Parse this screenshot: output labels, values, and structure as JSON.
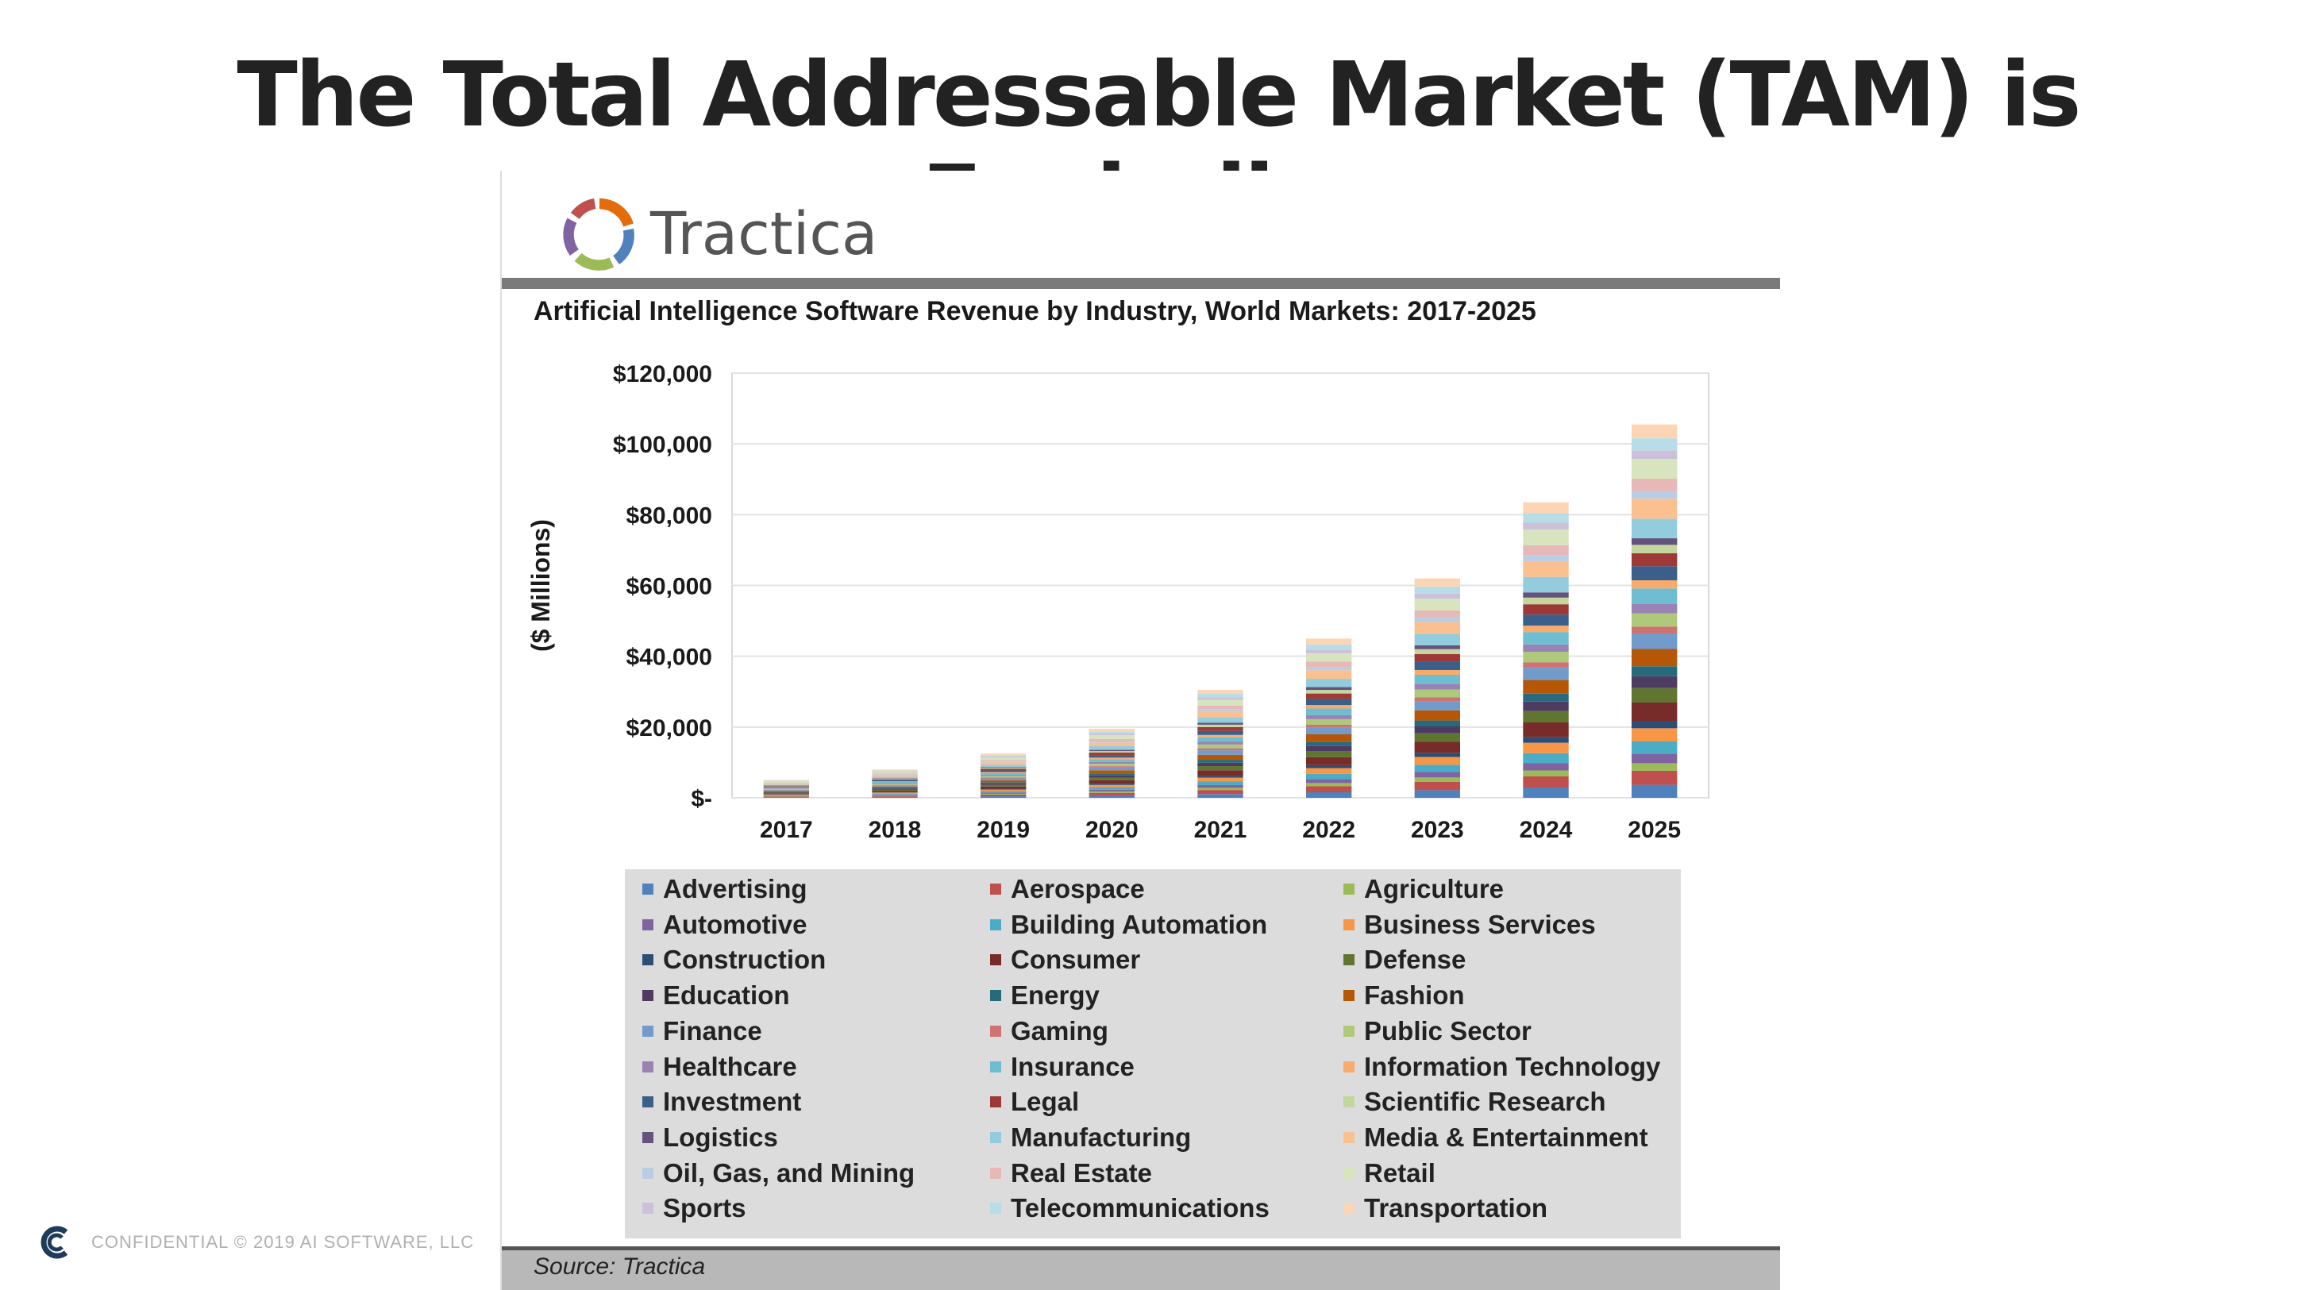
{
  "slide": {
    "title": "The Total Addressable Market (TAM) is Exploding",
    "footer": "CONFIDENTIAL © 2019 AI SOFTWARE, LLC"
  },
  "brand": {
    "name": "Tractica"
  },
  "source": "Source: Tractica",
  "chart_data": {
    "type": "bar",
    "stacked": true,
    "title": "Artificial Intelligence Software Revenue by Industry, World Markets: 2017-2025",
    "xlabel": "",
    "ylabel": "($ Millions)",
    "ylim": [
      0,
      120000
    ],
    "yticks": [
      0,
      20000,
      40000,
      60000,
      80000,
      100000,
      120000
    ],
    "ytick_labels": [
      "$-",
      "$20,000",
      "$40,000",
      "$60,000",
      "$80,000",
      "$100,000",
      "$120,000"
    ],
    "categories": [
      "2017",
      "2018",
      "2019",
      "2020",
      "2021",
      "2022",
      "2023",
      "2024",
      "2025"
    ],
    "totals": [
      5000,
      8000,
      12500,
      19500,
      30500,
      45000,
      62000,
      83500,
      105500
    ],
    "grid": true,
    "legend_position": "bottom",
    "series": [
      {
        "name": "Advertising",
        "color": "#4f81bd"
      },
      {
        "name": "Aerospace",
        "color": "#c0504d"
      },
      {
        "name": "Agriculture",
        "color": "#9bbb59"
      },
      {
        "name": "Automotive",
        "color": "#8064a2"
      },
      {
        "name": "Building Automation",
        "color": "#4bacc6"
      },
      {
        "name": "Business Services",
        "color": "#f79646"
      },
      {
        "name": "Construction",
        "color": "#2c4d75"
      },
      {
        "name": "Consumer",
        "color": "#772c2a"
      },
      {
        "name": "Defense",
        "color": "#5f7530"
      },
      {
        "name": "Education",
        "color": "#4d3b62"
      },
      {
        "name": "Energy",
        "color": "#276a7c"
      },
      {
        "name": "Fashion",
        "color": "#b65708"
      },
      {
        "name": "Finance",
        "color": "#729aca"
      },
      {
        "name": "Gaming",
        "color": "#cd7371"
      },
      {
        "name": "Public Sector",
        "color": "#afc97a"
      },
      {
        "name": "Healthcare",
        "color": "#9983b5"
      },
      {
        "name": "Insurance",
        "color": "#6fbdd1"
      },
      {
        "name": "Information Technology",
        "color": "#f9ab6b"
      },
      {
        "name": "Investment",
        "color": "#3a5f8b"
      },
      {
        "name": "Legal",
        "color": "#9d3a37"
      },
      {
        "name": "Scientific Research",
        "color": "#c3d69b"
      },
      {
        "name": "Logistics",
        "color": "#64537e"
      },
      {
        "name": "Manufacturing",
        "color": "#93cddd"
      },
      {
        "name": "Media & Entertainment",
        "color": "#fac090"
      },
      {
        "name": "Oil, Gas, and Mining",
        "color": "#b9cde5"
      },
      {
        "name": "Real Estate",
        "color": "#e6b9b8"
      },
      {
        "name": "Retail",
        "color": "#d7e4bd"
      },
      {
        "name": "Sports",
        "color": "#ccc1da"
      },
      {
        "name": "Telecommunications",
        "color": "#b7dee8"
      },
      {
        "name": "Transportation",
        "color": "#fcd5b5"
      }
    ]
  }
}
